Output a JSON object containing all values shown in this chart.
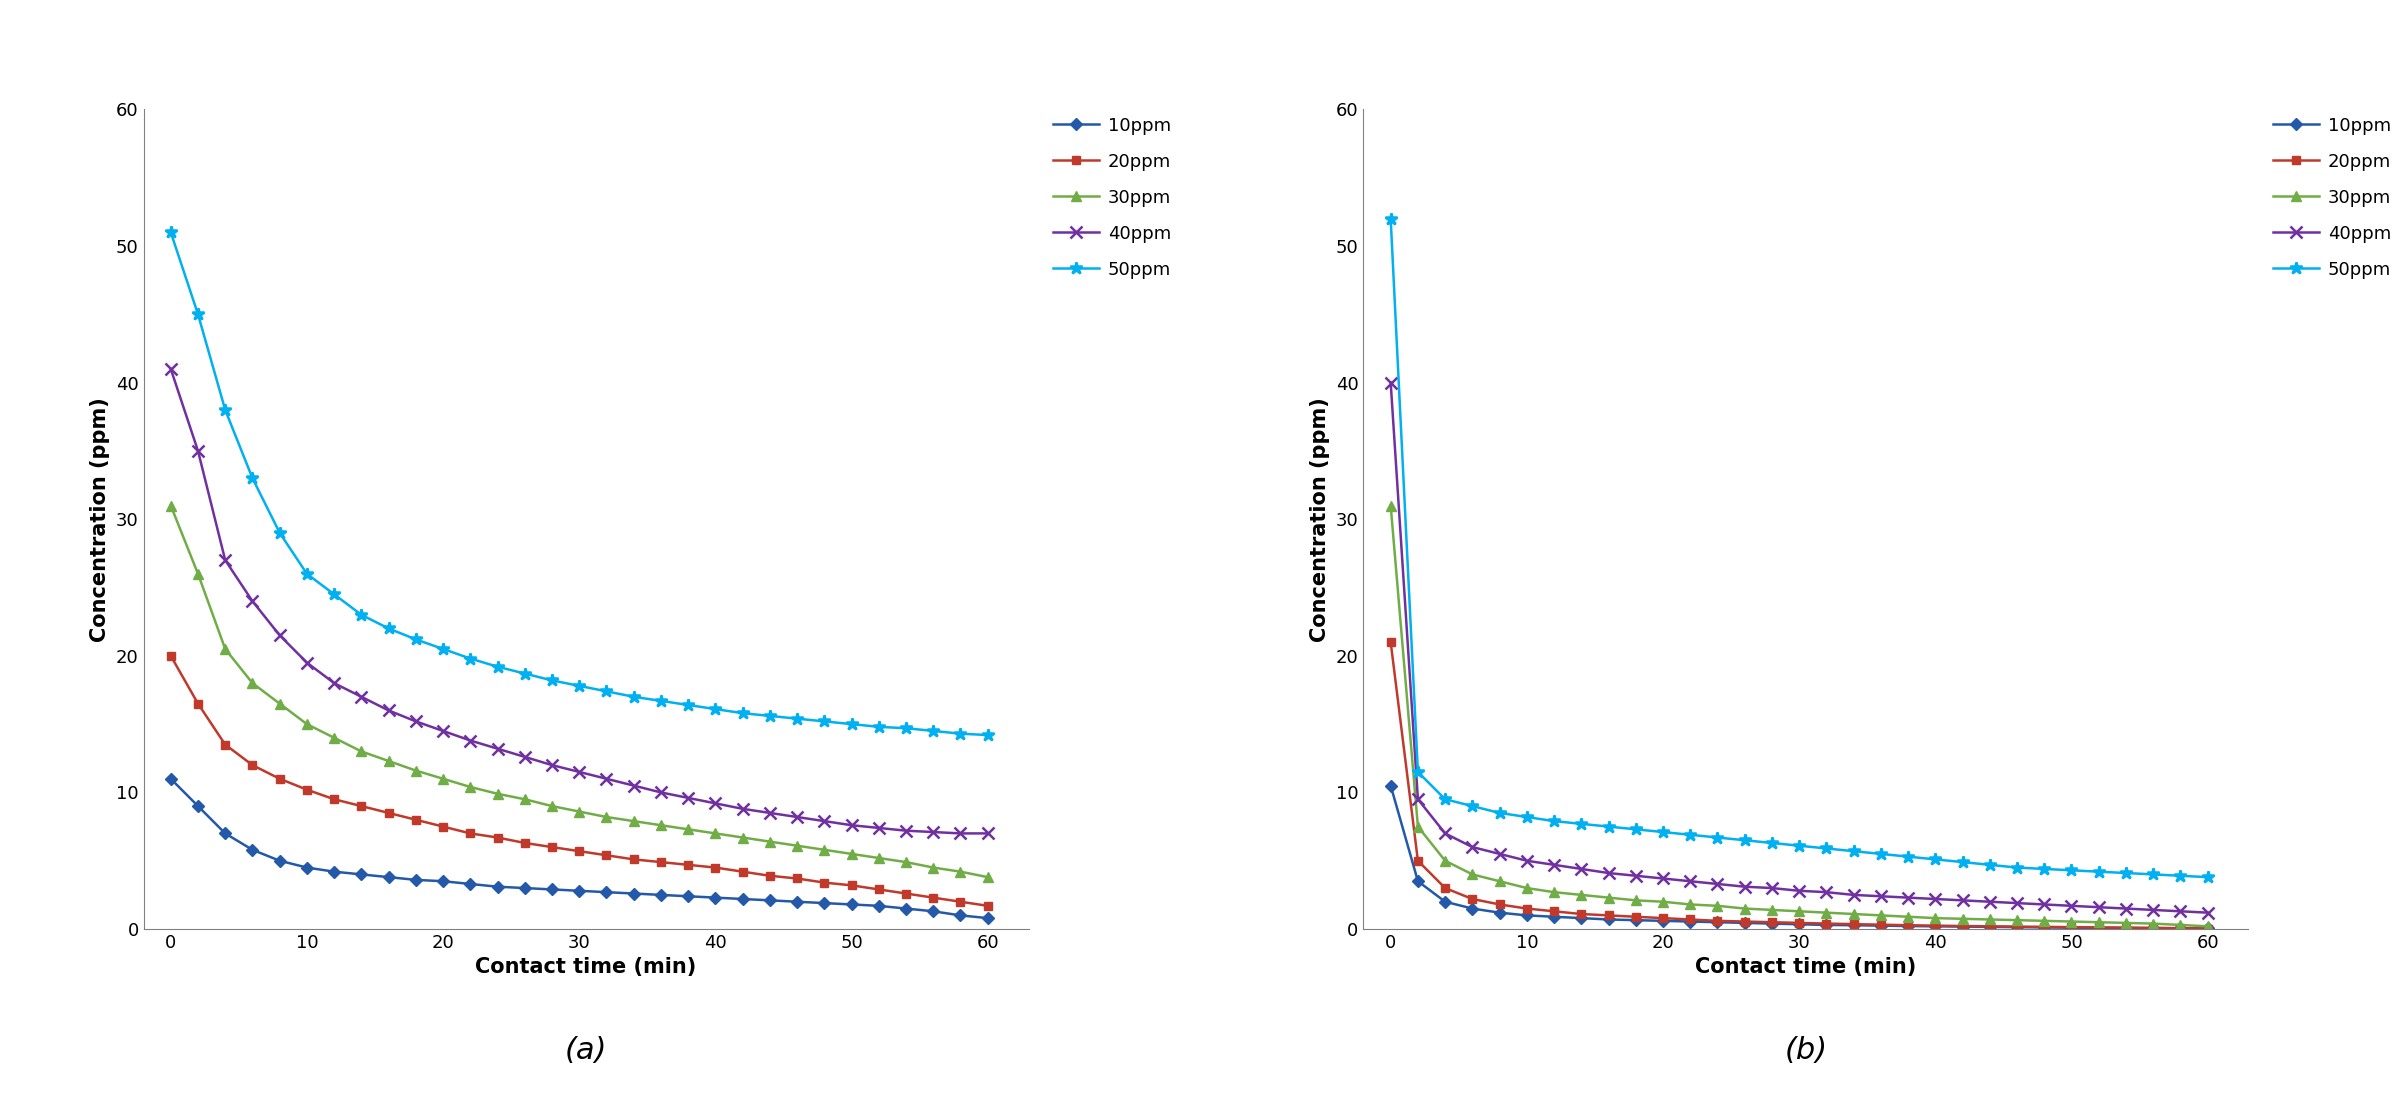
{
  "subplot_a": {
    "label": "(a)",
    "time": [
      0,
      2,
      4,
      6,
      8,
      10,
      12,
      14,
      16,
      18,
      20,
      22,
      24,
      26,
      28,
      30,
      32,
      34,
      36,
      38,
      40,
      42,
      44,
      46,
      48,
      50,
      52,
      54,
      56,
      58,
      60
    ],
    "series": {
      "10ppm": {
        "color": "#2458a8",
        "marker": "D",
        "markersize": 6,
        "values": [
          11,
          9.0,
          7.0,
          5.8,
          5.0,
          4.5,
          4.2,
          4.0,
          3.8,
          3.6,
          3.5,
          3.3,
          3.1,
          3.0,
          2.9,
          2.8,
          2.7,
          2.6,
          2.5,
          2.4,
          2.3,
          2.2,
          2.1,
          2.0,
          1.9,
          1.8,
          1.7,
          1.5,
          1.3,
          1.0,
          0.8
        ]
      },
      "20ppm": {
        "color": "#c0392b",
        "marker": "s",
        "markersize": 6,
        "values": [
          20,
          16.5,
          13.5,
          12.0,
          11.0,
          10.2,
          9.5,
          9.0,
          8.5,
          8.0,
          7.5,
          7.0,
          6.7,
          6.3,
          6.0,
          5.7,
          5.4,
          5.1,
          4.9,
          4.7,
          4.5,
          4.2,
          3.9,
          3.7,
          3.4,
          3.2,
          2.9,
          2.6,
          2.3,
          2.0,
          1.7
        ]
      },
      "30ppm": {
        "color": "#70ad47",
        "marker": "^",
        "markersize": 7,
        "values": [
          31,
          26.0,
          20.5,
          18.0,
          16.5,
          15.0,
          14.0,
          13.0,
          12.3,
          11.6,
          11.0,
          10.4,
          9.9,
          9.5,
          9.0,
          8.6,
          8.2,
          7.9,
          7.6,
          7.3,
          7.0,
          6.7,
          6.4,
          6.1,
          5.8,
          5.5,
          5.2,
          4.9,
          4.5,
          4.2,
          3.8
        ]
      },
      "40ppm": {
        "color": "#7030a0",
        "marker": "x",
        "markersize": 8,
        "values": [
          41,
          35.0,
          27.0,
          24.0,
          21.5,
          19.5,
          18.0,
          17.0,
          16.0,
          15.2,
          14.5,
          13.8,
          13.2,
          12.6,
          12.0,
          11.5,
          11.0,
          10.5,
          10.0,
          9.6,
          9.2,
          8.8,
          8.5,
          8.2,
          7.9,
          7.6,
          7.4,
          7.2,
          7.1,
          7.0,
          7.0
        ]
      },
      "50ppm": {
        "color": "#00b0f0",
        "marker": "*",
        "markersize": 9,
        "values": [
          51,
          45.0,
          38.0,
          33.0,
          29.0,
          26.0,
          24.5,
          23.0,
          22.0,
          21.2,
          20.5,
          19.8,
          19.2,
          18.7,
          18.2,
          17.8,
          17.4,
          17.0,
          16.7,
          16.4,
          16.1,
          15.8,
          15.6,
          15.4,
          15.2,
          15.0,
          14.8,
          14.7,
          14.5,
          14.3,
          14.2
        ]
      }
    }
  },
  "subplot_b": {
    "label": "(b)",
    "time": [
      0,
      2,
      4,
      6,
      8,
      10,
      12,
      14,
      16,
      18,
      20,
      22,
      24,
      26,
      28,
      30,
      32,
      34,
      36,
      38,
      40,
      42,
      44,
      46,
      48,
      50,
      52,
      54,
      56,
      58,
      60
    ],
    "series": {
      "10ppm": {
        "color": "#2458a8",
        "marker": "D",
        "markersize": 6,
        "values": [
          10.5,
          3.5,
          2.0,
          1.5,
          1.2,
          1.0,
          0.9,
          0.8,
          0.7,
          0.65,
          0.6,
          0.55,
          0.5,
          0.45,
          0.4,
          0.35,
          0.3,
          0.28,
          0.25,
          0.22,
          0.2,
          0.18,
          0.16,
          0.14,
          0.12,
          0.1,
          0.09,
          0.08,
          0.07,
          0.06,
          0.05
        ]
      },
      "20ppm": {
        "color": "#c0392b",
        "marker": "s",
        "markersize": 6,
        "values": [
          21,
          5.0,
          3.0,
          2.2,
          1.8,
          1.5,
          1.3,
          1.1,
          1.0,
          0.9,
          0.8,
          0.7,
          0.6,
          0.55,
          0.5,
          0.45,
          0.4,
          0.36,
          0.32,
          0.28,
          0.25,
          0.22,
          0.2,
          0.18,
          0.16,
          0.14,
          0.12,
          0.1,
          0.08,
          0.06,
          0.04
        ]
      },
      "30ppm": {
        "color": "#70ad47",
        "marker": "^",
        "markersize": 7,
        "values": [
          31,
          7.5,
          5.0,
          4.0,
          3.5,
          3.0,
          2.7,
          2.5,
          2.3,
          2.1,
          2.0,
          1.8,
          1.7,
          1.5,
          1.4,
          1.3,
          1.2,
          1.1,
          1.0,
          0.9,
          0.8,
          0.75,
          0.7,
          0.65,
          0.6,
          0.55,
          0.5,
          0.45,
          0.4,
          0.3,
          0.2
        ]
      },
      "40ppm": {
        "color": "#7030a0",
        "marker": "x",
        "markersize": 8,
        "values": [
          40,
          9.5,
          7.0,
          6.0,
          5.5,
          5.0,
          4.7,
          4.4,
          4.1,
          3.9,
          3.7,
          3.5,
          3.3,
          3.1,
          3.0,
          2.8,
          2.7,
          2.5,
          2.4,
          2.3,
          2.2,
          2.1,
          2.0,
          1.9,
          1.8,
          1.7,
          1.6,
          1.5,
          1.4,
          1.3,
          1.2
        ]
      },
      "50ppm": {
        "color": "#00b0f0",
        "marker": "*",
        "markersize": 9,
        "values": [
          52,
          11.5,
          9.5,
          9.0,
          8.5,
          8.2,
          7.9,
          7.7,
          7.5,
          7.3,
          7.1,
          6.9,
          6.7,
          6.5,
          6.3,
          6.1,
          5.9,
          5.7,
          5.5,
          5.3,
          5.1,
          4.9,
          4.7,
          4.5,
          4.4,
          4.3,
          4.2,
          4.1,
          4.0,
          3.9,
          3.8
        ]
      }
    }
  },
  "xlabel": "Contact time (min)",
  "ylabel": "Concentration (ppm)",
  "ylim": [
    0,
    60
  ],
  "yticks": [
    0,
    10,
    20,
    30,
    40,
    50,
    60
  ],
  "xticks": [
    0,
    10,
    20,
    30,
    40,
    50,
    60
  ],
  "xlim": [
    -2,
    63
  ],
  "label_fontsize": 15,
  "tick_fontsize": 13,
  "legend_fontsize": 13,
  "subplot_label_fontsize": 22,
  "linewidth": 1.8
}
